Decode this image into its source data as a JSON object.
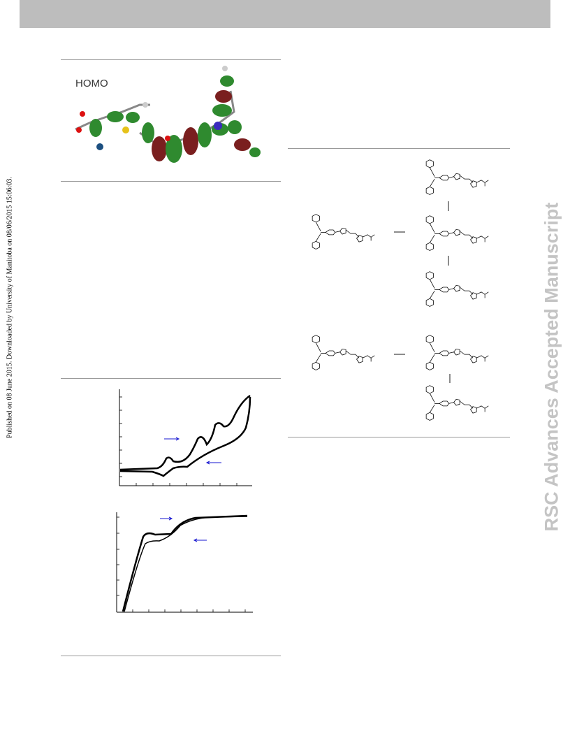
{
  "sidebar": {
    "published": "Published on 08 June 2015. Downloaded by University of Manitoba on 08/06/2015 15:06:03.",
    "watermark": "RSC Advances Accepted Manuscript"
  },
  "figure": {
    "orbital_label": "HOMO"
  }
}
